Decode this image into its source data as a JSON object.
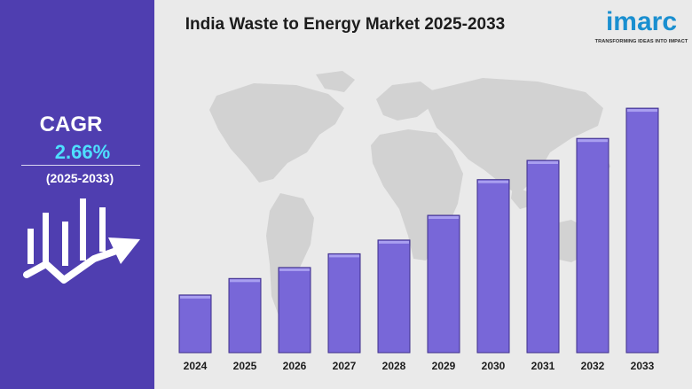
{
  "sidebar": {
    "cagr_label": "CAGR",
    "cagr_value": "2.66%",
    "period": "(2025-2033)",
    "icon": "growth-chart-icon"
  },
  "header": {
    "title": "India Waste to Energy Market 2025-2033"
  },
  "logo": {
    "word": "imarc",
    "tagline": "TRANSFORMING IDEAS INTO IMPACT"
  },
  "colors": {
    "sidebar_bg": "#4f3eb0",
    "bar_fill": "#7867d8",
    "bar_border": "#3e2f8a",
    "cagr_value": "#4ee0ff",
    "logo": "#1a8fd0",
    "background": "#eaeaea"
  },
  "chart_data": {
    "type": "bar",
    "title": "India Waste to Energy Market 2025-2033",
    "categories": [
      "2024",
      "2025",
      "2026",
      "2027",
      "2028",
      "2029",
      "2030",
      "2031",
      "2032",
      "2033"
    ],
    "values": [
      21,
      27,
      31,
      36,
      41,
      50,
      63,
      70,
      78,
      89
    ],
    "value_note": "no values or y-axis printed; bar heights read on a relative 0-100 scale",
    "ylim": [
      0,
      100
    ],
    "xlabel": "",
    "ylabel": "",
    "grid": false,
    "legend": "none",
    "background_image": "world-map"
  }
}
